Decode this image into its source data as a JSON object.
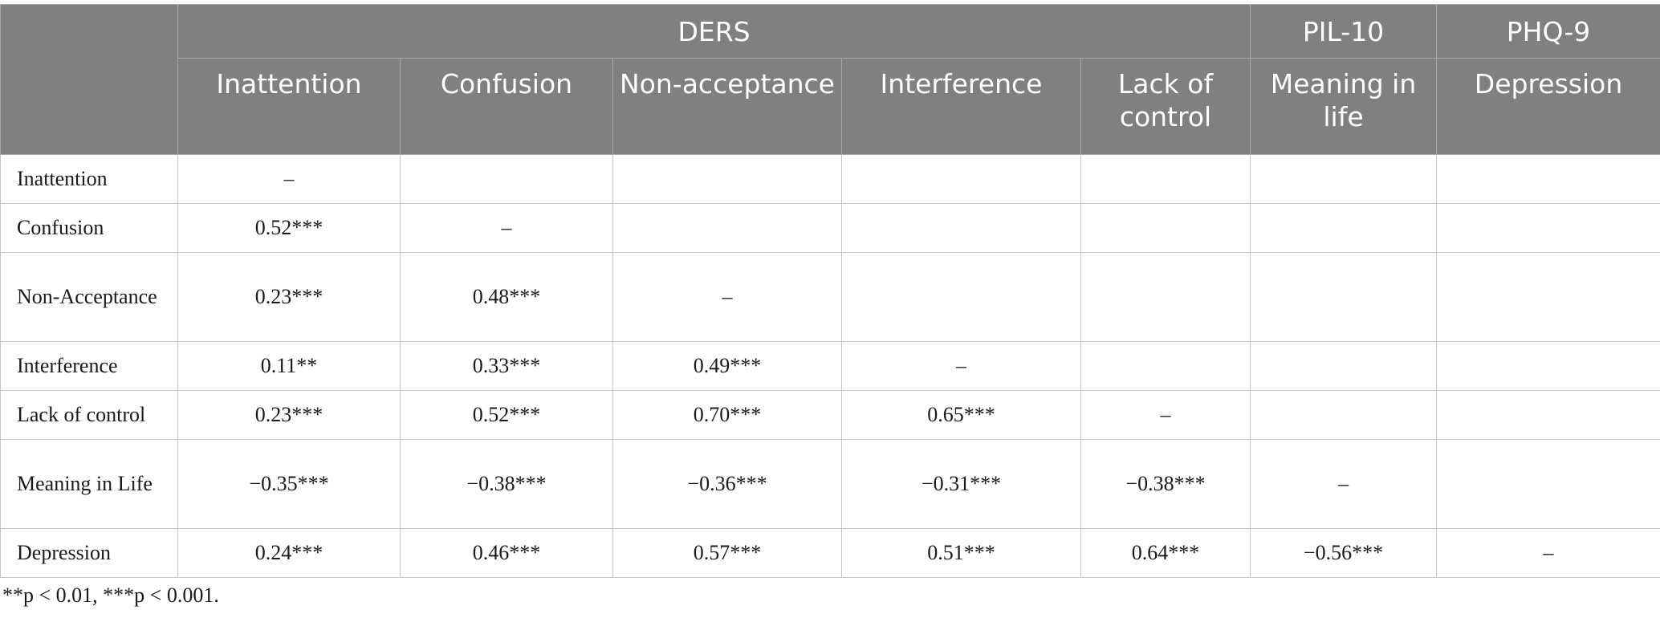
{
  "table": {
    "group_headers": [
      "DERS",
      "PIL-10",
      "PHQ-9"
    ],
    "columns": [
      "Inattention",
      "Confusion",
      "Non-acceptance",
      "Interference",
      "Lack of control",
      "Meaning in life",
      "Depression"
    ],
    "rows": [
      {
        "label": "Inattention",
        "cells": [
          "–",
          "",
          "",
          "",
          "",
          "",
          ""
        ]
      },
      {
        "label": "Confusion",
        "cells": [
          "0.52***",
          "–",
          "",
          "",
          "",
          "",
          ""
        ]
      },
      {
        "label": "Non-Acceptance",
        "cells": [
          "0.23***",
          "0.48***",
          "–",
          "",
          "",
          "",
          ""
        ]
      },
      {
        "label": "Interference",
        "cells": [
          "0.11**",
          "0.33***",
          "0.49***",
          "–",
          "",
          "",
          ""
        ]
      },
      {
        "label": "Lack of control",
        "cells": [
          "0.23***",
          "0.52***",
          "0.70***",
          "0.65***",
          "–",
          "",
          ""
        ]
      },
      {
        "label": "Meaning in Life",
        "cells": [
          "−0.35***",
          "−0.38***",
          "−0.36***",
          "−0.31***",
          "−0.38***",
          "–",
          ""
        ]
      },
      {
        "label": "Depression",
        "cells": [
          "0.24***",
          "0.46***",
          "0.57***",
          "0.51***",
          "0.64***",
          "−0.56***",
          "–"
        ]
      }
    ]
  },
  "footnote": "**p < 0.01, ***p < 0.001."
}
